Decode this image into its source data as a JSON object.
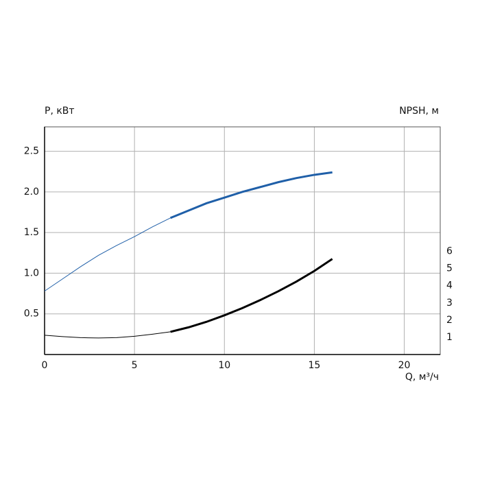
{
  "chart_data": {
    "type": "line",
    "y_label": "P, кВт",
    "y2_label": "NPSH, м",
    "x_label": "Q, м³/ч",
    "xlim": [
      0,
      22
    ],
    "xticks": [
      0,
      5,
      10,
      15,
      20
    ],
    "ylim": [
      0,
      2.8
    ],
    "yticks": [
      0.5,
      {
        "value": 1,
        "label": "1.0"
      },
      1.5,
      {
        "value": 2,
        "label": "2.0"
      },
      2.5
    ],
    "y2lim": [
      0,
      13.24
    ],
    "y2ticks": [
      1,
      2,
      3,
      4,
      5,
      6
    ],
    "grid": true,
    "series": [
      {
        "color": "#1f5fa8",
        "width": 1,
        "axis": "y",
        "x": [
          0,
          1,
          2,
          3,
          4,
          5,
          6,
          7
        ],
        "values": [
          0.78,
          0.93,
          1.08,
          1.22,
          1.34,
          1.45,
          1.57,
          1.68
        ]
      },
      {
        "color": "#1f5fa8",
        "width": 3,
        "axis": "y",
        "x": [
          7,
          8,
          9,
          10,
          11,
          12,
          13,
          14,
          15,
          16
        ],
        "values": [
          1.68,
          1.77,
          1.86,
          1.93,
          2.0,
          2.06,
          2.12,
          2.17,
          2.21,
          2.24
        ]
      },
      {
        "color": "#000000",
        "width": 1,
        "axis": "y2",
        "x": [
          0,
          1,
          2,
          3,
          4,
          5,
          6,
          7
        ],
        "values": [
          1.12,
          1.04,
          0.98,
          0.96,
          0.98,
          1.06,
          1.18,
          1.32
        ]
      },
      {
        "color": "#000000",
        "width": 3,
        "axis": "y2",
        "x": [
          7,
          8,
          9,
          10,
          11,
          12,
          13,
          14,
          15,
          16
        ],
        "values": [
          1.32,
          1.58,
          1.9,
          2.28,
          2.7,
          3.17,
          3.68,
          4.24,
          4.86,
          5.56
        ]
      }
    ]
  }
}
